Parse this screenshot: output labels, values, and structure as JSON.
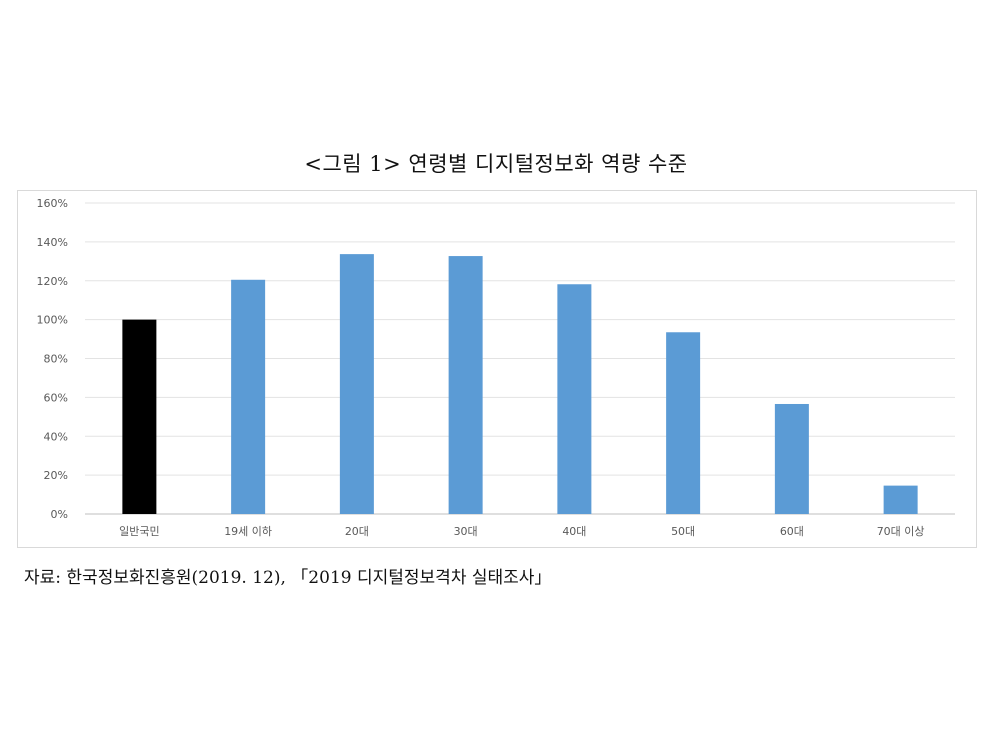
{
  "title": "<그림 1> 연령별 디지털정보화 역량 수준",
  "source": "자료: 한국정보화진흥원(2019. 12), 「2019 디지털정보격차 실태조사」",
  "chart_data": {
    "type": "bar",
    "categories": [
      "일반국민",
      "19세 이하",
      "20대",
      "30대",
      "40대",
      "50대",
      "60대",
      "70대 이상"
    ],
    "values": [
      100,
      120.5,
      133.7,
      132.7,
      118.2,
      93.5,
      56.6,
      14.6
    ],
    "bar_colors": [
      "#000000",
      "#5b9bd5",
      "#5b9bd5",
      "#5b9bd5",
      "#5b9bd5",
      "#5b9bd5",
      "#5b9bd5",
      "#5b9bd5"
    ],
    "yticks": [
      "0%",
      "20%",
      "40%",
      "60%",
      "80%",
      "100%",
      "120%",
      "140%",
      "160%"
    ],
    "ylim": [
      0,
      160
    ],
    "grid": true,
    "legend": "none"
  }
}
